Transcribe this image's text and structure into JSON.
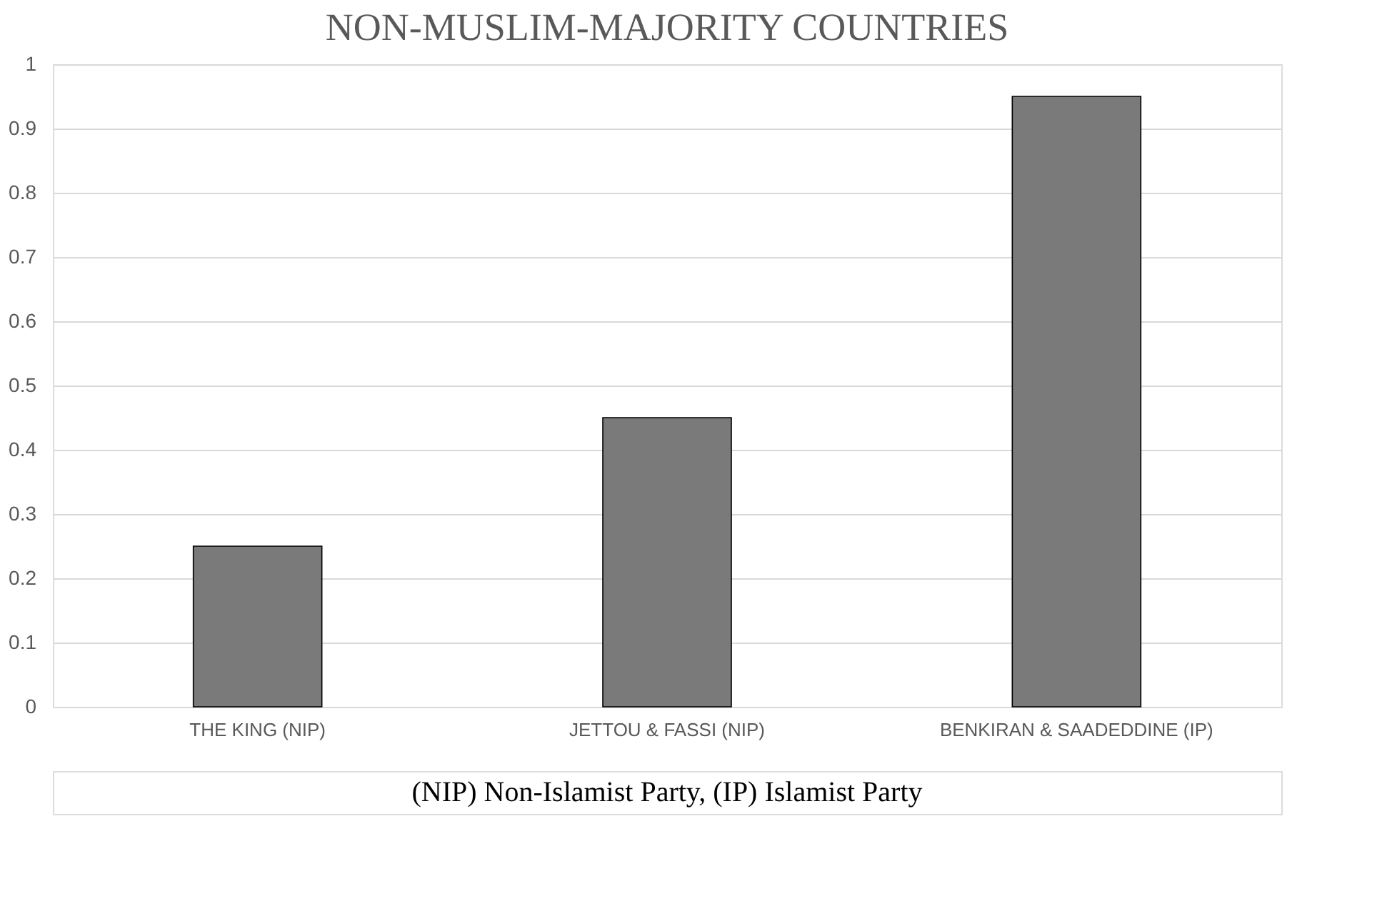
{
  "chart_data": {
    "type": "bar",
    "title": "NON-MUSLIM-MAJORITY COUNTRIES",
    "categories": [
      "THE KING (NIP)",
      "JETTOU & FASSI (NIP)",
      "BENKIRAN & SAADEDDINE (IP)"
    ],
    "values": [
      0.25,
      0.45,
      0.95
    ],
    "color": "#7a7a7a",
    "ylim": [
      0,
      1
    ],
    "yticks": [
      0,
      0.1,
      0.2,
      0.3,
      0.4,
      0.5,
      0.6,
      0.7,
      0.8,
      0.9,
      1
    ],
    "grid": "y",
    "annotations": [
      "(NIP) Non-Islamist Party, (IP) Islamist Party"
    ]
  }
}
